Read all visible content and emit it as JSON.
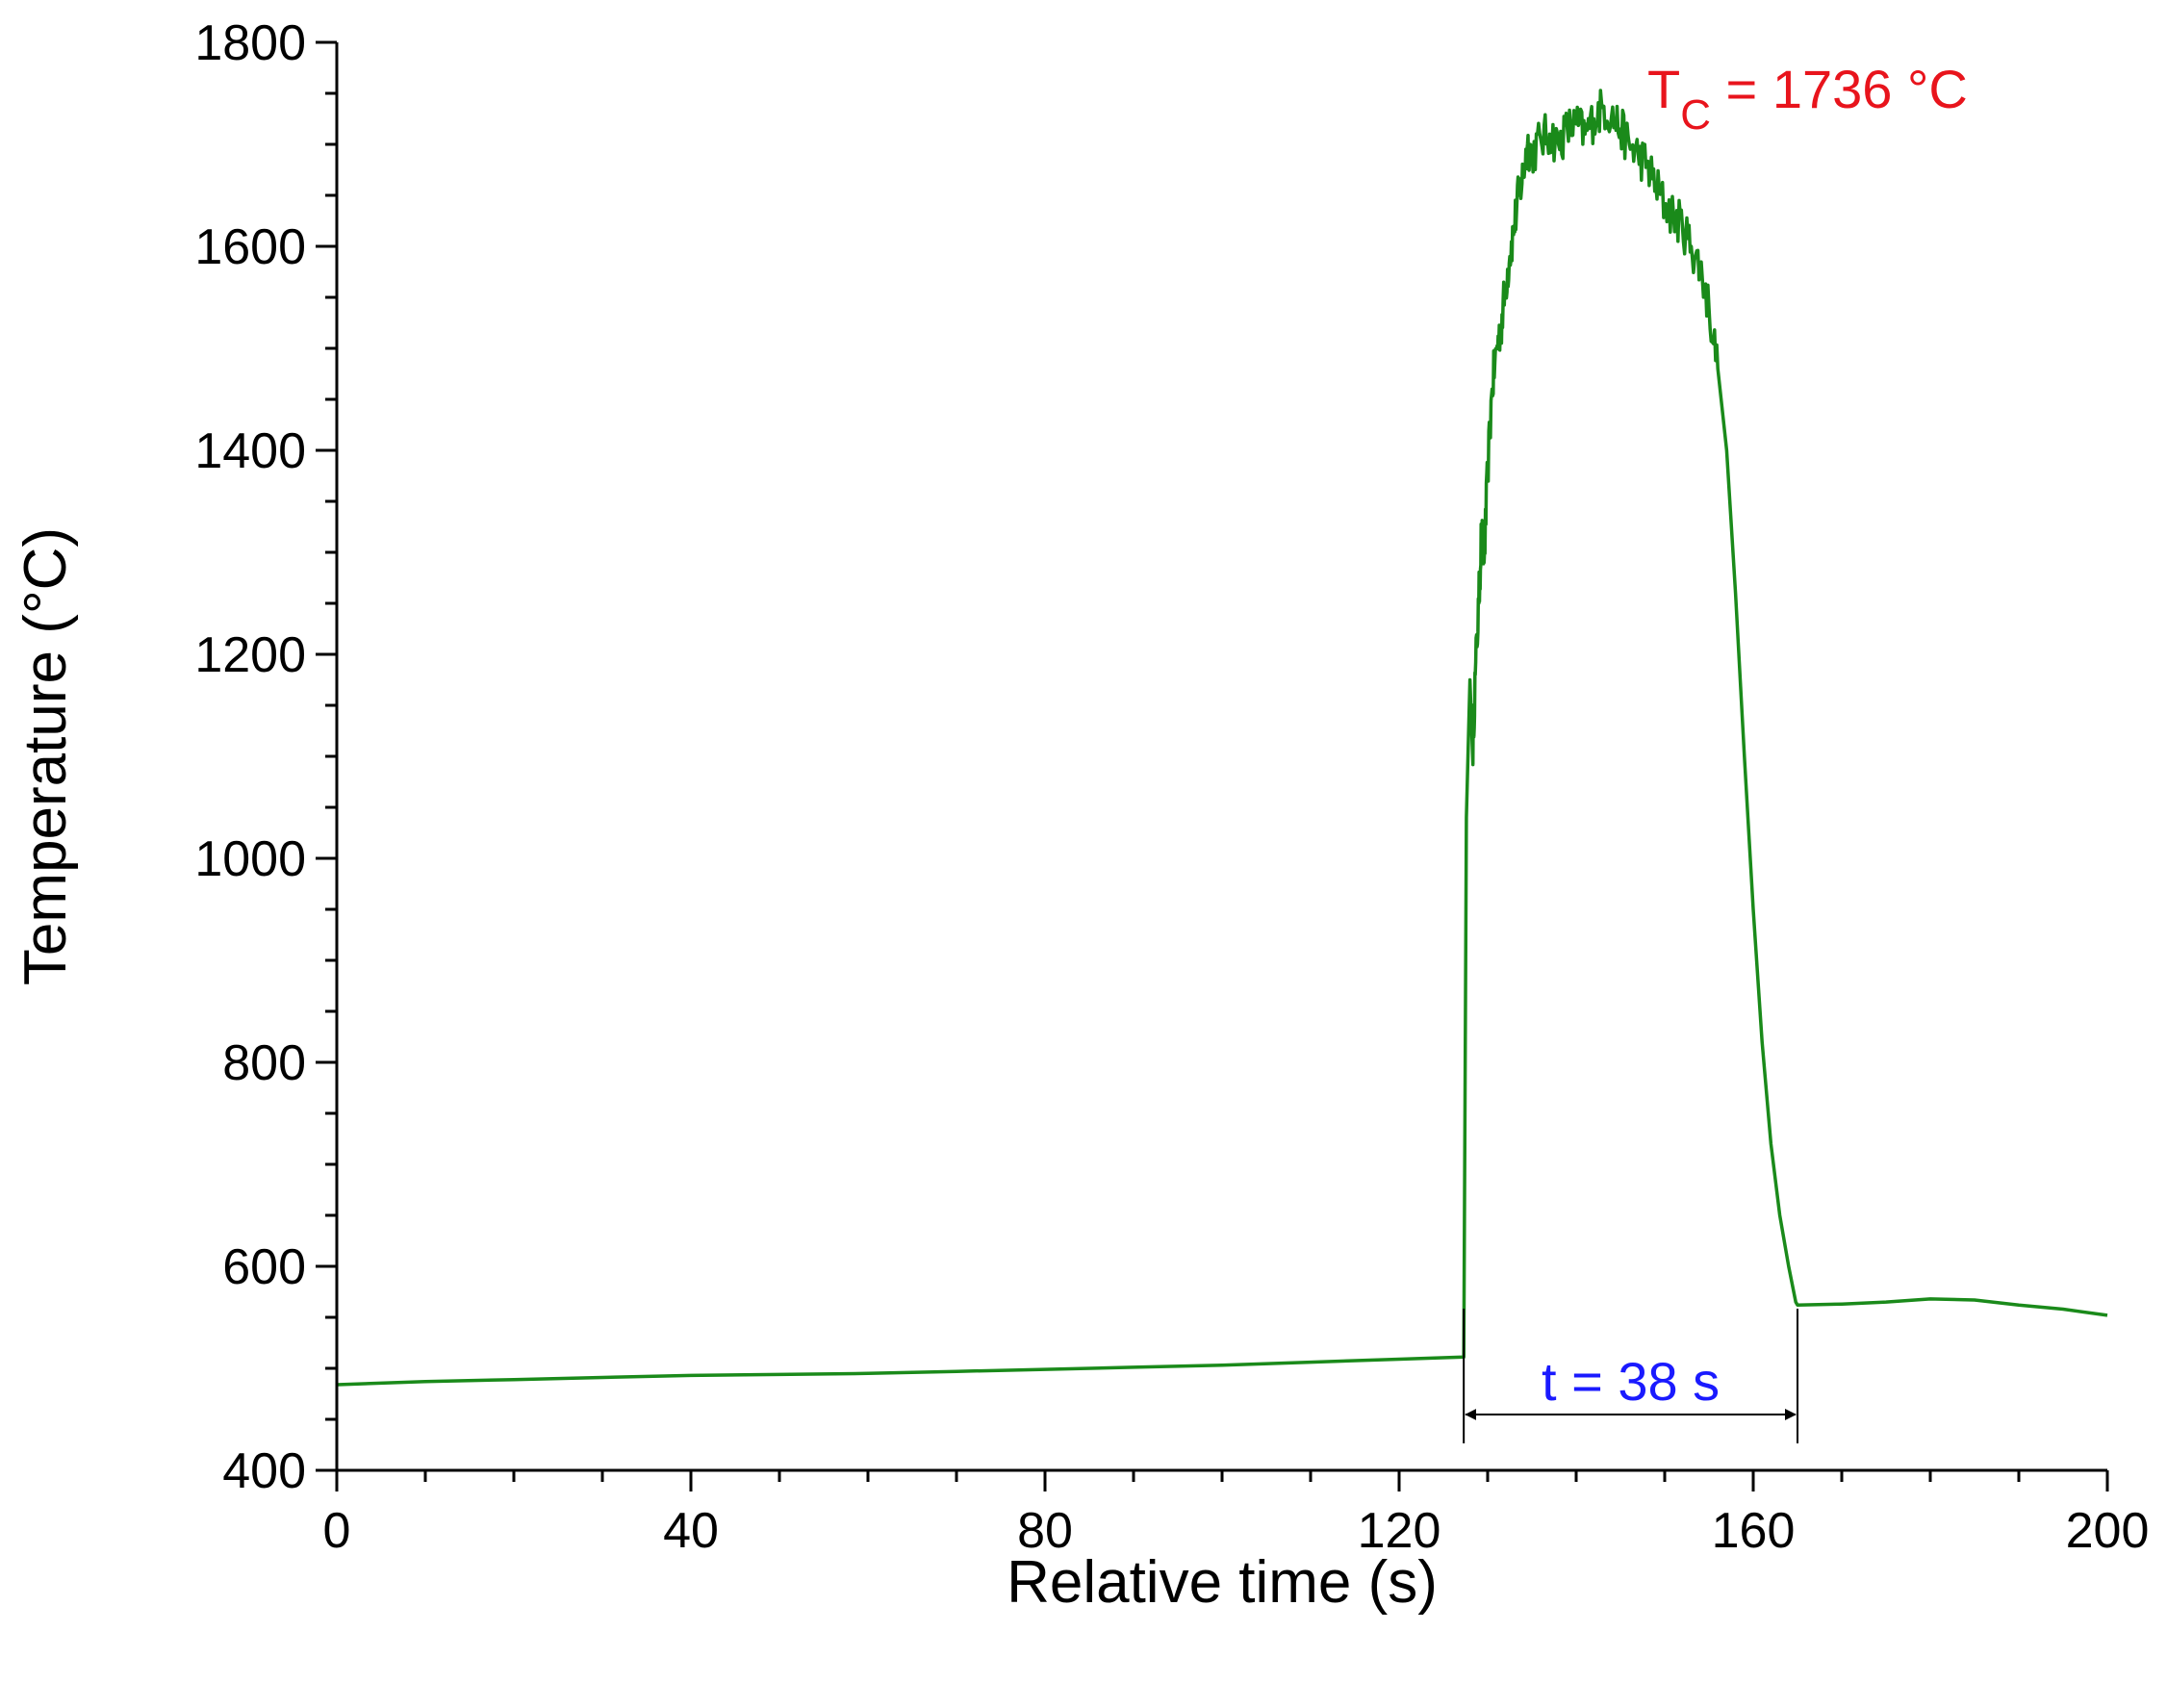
{
  "chart_data": {
    "type": "line",
    "title": "",
    "xlabel": "Relative time (s)",
    "ylabel": "Temperature (°C)",
    "xlim": [
      0,
      200
    ],
    "ylim": [
      400,
      1800
    ],
    "xticks": [
      0,
      40,
      80,
      120,
      160,
      200
    ],
    "yticks": [
      400,
      600,
      800,
      1000,
      1200,
      1400,
      1600,
      1800
    ],
    "x_minor_step": 10,
    "y_minor_step": 50,
    "grid": false,
    "legend": "none",
    "series": [
      {
        "color": "#1a8a1a",
        "x": [
          0,
          10,
          20,
          30,
          40,
          50,
          60,
          70,
          80,
          90,
          100,
          110,
          120,
          127.3,
          127.6,
          128.0,
          128.3,
          128.6,
          129.0,
          129.3,
          129.6,
          130.0,
          130.5,
          131,
          131.5,
          132,
          132.5,
          133,
          133.5,
          134,
          134.5,
          135,
          136,
          137,
          138,
          139,
          140,
          141,
          142,
          143,
          144,
          145,
          146,
          147,
          148,
          149,
          150,
          151,
          152,
          153,
          154,
          155,
          156,
          157,
          158,
          159,
          160,
          161,
          162,
          163,
          164,
          164.8,
          165,
          170,
          175,
          180,
          185,
          190,
          195,
          200
        ],
        "y": [
          484,
          487,
          489,
          491,
          493,
          494,
          495,
          497,
          499,
          501,
          503,
          506,
          509,
          511,
          1040,
          1175,
          1100,
          1180,
          1250,
          1320,
          1290,
          1380,
          1460,
          1500,
          1520,
          1560,
          1590,
          1620,
          1650,
          1670,
          1700,
          1690,
          1705,
          1710,
          1700,
          1715,
          1720,
          1710,
          1725,
          1736,
          1728,
          1715,
          1700,
          1690,
          1680,
          1660,
          1640,
          1630,
          1620,
          1600,
          1580,
          1540,
          1480,
          1400,
          1260,
          1100,
          950,
          820,
          720,
          650,
          600,
          565,
          562,
          563,
          565,
          568,
          567,
          562,
          558,
          552
        ]
      }
    ],
    "annotations": [
      {
        "prefix": "T",
        "subscript": "C",
        "suffix": " = 1736 °C",
        "color": "#e8141c",
        "x": 143,
        "y": 1736
      },
      {
        "text": "t = 38 s",
        "color": "#1a1aff",
        "x_start": 127.3,
        "x_end": 165
      }
    ]
  }
}
